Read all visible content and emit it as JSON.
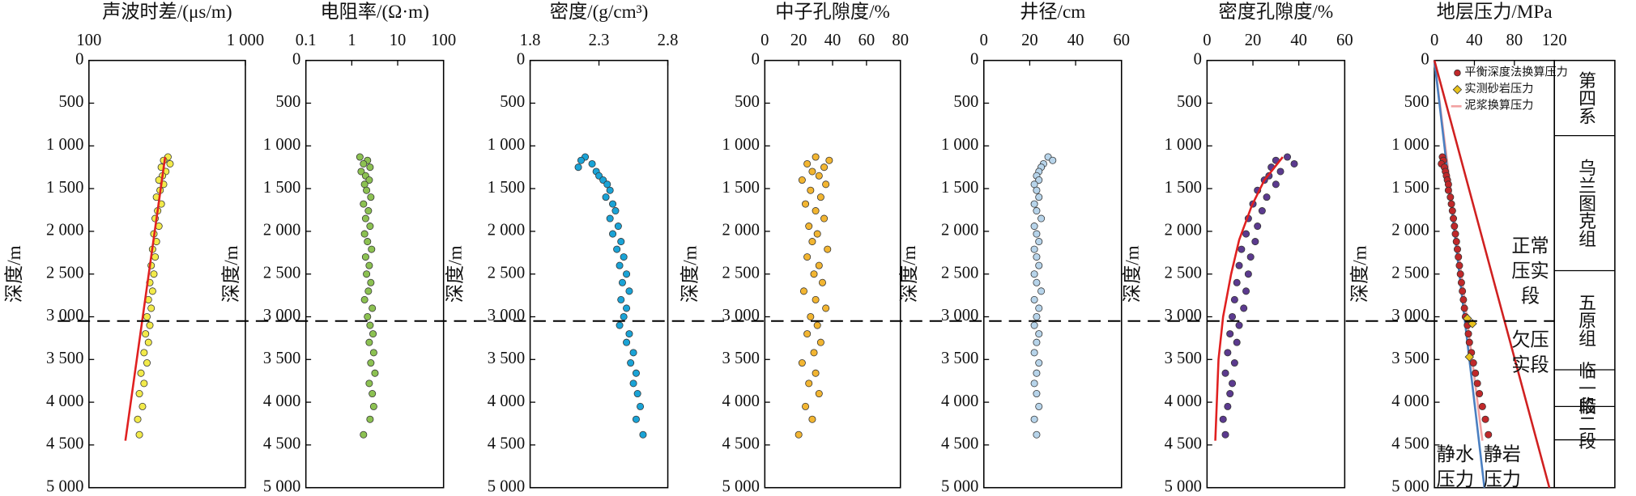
{
  "chart_data": [
    {
      "type": "scatter",
      "title": "声波时差/(μs/m)",
      "ylabel": "深度/m",
      "xscale": "log",
      "xlim": [
        100,
        1000
      ],
      "xticks": [
        100,
        {
          "value": 1000,
          "label": "1 000"
        }
      ],
      "ylim": [
        0,
        5000
      ],
      "yticks": [
        0,
        500,
        {
          "value": 1000,
          "label": "1 000"
        },
        {
          "value": 1500,
          "label": "1 500"
        },
        {
          "value": 2000,
          "label": "2 000"
        },
        {
          "value": 2500,
          "label": "2 500"
        },
        {
          "value": 3000,
          "label": "3 000"
        },
        {
          "value": 3500,
          "label": "3 500"
        },
        {
          "value": 4000,
          "label": "4 000"
        },
        {
          "value": 4500,
          "label": "4 500"
        },
        {
          "value": 5000,
          "label": "5 000"
        }
      ],
      "series": [
        {
          "kind": "scatter",
          "color": "#f2ea4a",
          "x": [
            320,
            300,
            330,
            290,
            310,
            295,
            280,
            300,
            285,
            270,
            290,
            275,
            265,
            280,
            260,
            270,
            255,
            265,
            250,
            260,
            245,
            255,
            240,
            250,
            235,
            245,
            230,
            240,
            225,
            235,
            215,
            225,
            210,
            220,
            205,
            210
          ],
          "y": [
            1130,
            1170,
            1210,
            1250,
            1300,
            1350,
            1400,
            1450,
            1520,
            1600,
            1680,
            1760,
            1850,
            1940,
            2030,
            2120,
            2210,
            2300,
            2400,
            2500,
            2600,
            2700,
            2800,
            2900,
            3000,
            3100,
            3200,
            3300,
            3420,
            3540,
            3660,
            3780,
            3900,
            4050,
            4200,
            4380
          ]
        },
        {
          "kind": "line",
          "color": "#e02020",
          "x": [
            307,
            171
          ],
          "y": [
            1130,
            4450
          ]
        }
      ]
    },
    {
      "type": "scatter",
      "title": "电阻率/(Ω·m)",
      "ylabel": "深度/m",
      "xscale": "log",
      "xlim": [
        0.1,
        100
      ],
      "xticks": [
        0.1,
        1,
        10,
        100
      ],
      "ylim": [
        0,
        5000
      ],
      "yticks": [
        0,
        500,
        {
          "value": 1000,
          "label": "1 000"
        },
        {
          "value": 1500,
          "label": "1 500"
        },
        {
          "value": 2000,
          "label": "2 000"
        },
        {
          "value": 2500,
          "label": "2 500"
        },
        {
          "value": 3000,
          "label": "3 000"
        },
        {
          "value": 3500,
          "label": "3 500"
        },
        {
          "value": 4000,
          "label": "4 000"
        },
        {
          "value": 4500,
          "label": "4 500"
        },
        {
          "value": 5000,
          "label": "5 000"
        }
      ],
      "series": [
        {
          "kind": "scatter",
          "color": "#8cc152",
          "x": [
            1.5,
            2.2,
            1.8,
            2.5,
            1.6,
            2,
            2.4,
            1.9,
            2.1,
            2.6,
            1.8,
            2.3,
            2,
            2.5,
            1.9,
            2.2,
            2.7,
            2,
            2.4,
            2.1,
            2.6,
            2.3,
            1.9,
            2.8,
            2.2,
            2.5,
            2.9,
            2.4,
            3,
            2.6,
            3.2,
            2.4,
            2.8,
            3,
            2.5,
            1.8
          ],
          "y": [
            1130,
            1170,
            1210,
            1250,
            1300,
            1350,
            1400,
            1450,
            1520,
            1600,
            1680,
            1760,
            1850,
            1940,
            2030,
            2120,
            2210,
            2300,
            2400,
            2500,
            2600,
            2700,
            2800,
            2900,
            3000,
            3100,
            3200,
            3300,
            3420,
            3540,
            3660,
            3780,
            3900,
            4050,
            4200,
            4380
          ]
        }
      ]
    },
    {
      "type": "scatter",
      "title": "密度/(g/cm³)",
      "ylabel": "深度/m",
      "xlim": [
        1.8,
        2.8
      ],
      "xticks": [
        1.8,
        2.3,
        2.8
      ],
      "ylim": [
        0,
        5000
      ],
      "yticks": [
        0,
        500,
        {
          "value": 1000,
          "label": "1 000"
        },
        {
          "value": 1500,
          "label": "1 500"
        },
        {
          "value": 2000,
          "label": "2 000"
        },
        {
          "value": 2500,
          "label": "2 500"
        },
        {
          "value": 3000,
          "label": "3 000"
        },
        {
          "value": 3500,
          "label": "3 500"
        },
        {
          "value": 4000,
          "label": "4 000"
        },
        {
          "value": 4500,
          "label": "4 500"
        },
        {
          "value": 5000,
          "label": "5 000"
        }
      ],
      "series": [
        {
          "kind": "scatter",
          "color": "#1aa3d6",
          "x": [
            2.2,
            2.17,
            2.25,
            2.15,
            2.28,
            2.3,
            2.33,
            2.36,
            2.38,
            2.35,
            2.4,
            2.42,
            2.38,
            2.44,
            2.4,
            2.46,
            2.43,
            2.48,
            2.45,
            2.5,
            2.47,
            2.52,
            2.46,
            2.5,
            2.48,
            2.45,
            2.52,
            2.5,
            2.55,
            2.53,
            2.57,
            2.55,
            2.58,
            2.6,
            2.57,
            2.62
          ],
          "y": [
            1130,
            1170,
            1210,
            1250,
            1300,
            1350,
            1400,
            1450,
            1520,
            1600,
            1680,
            1760,
            1850,
            1940,
            2030,
            2120,
            2210,
            2300,
            2400,
            2500,
            2600,
            2700,
            2800,
            2900,
            3000,
            3100,
            3200,
            3300,
            3420,
            3540,
            3660,
            3780,
            3900,
            4050,
            4200,
            4380
          ]
        }
      ]
    },
    {
      "type": "scatter",
      "title": "中子孔隙度/%",
      "ylabel": "深度/m",
      "xlim": [
        0,
        80
      ],
      "xticks": [
        0,
        20,
        40,
        60,
        80
      ],
      "ylim": [
        0,
        5000
      ],
      "yticks": [
        0,
        500,
        {
          "value": 1000,
          "label": "1 000"
        },
        {
          "value": 1500,
          "label": "1 500"
        },
        {
          "value": 2000,
          "label": "2 000"
        },
        {
          "value": 2500,
          "label": "2 500"
        },
        {
          "value": 3000,
          "label": "3 000"
        },
        {
          "value": 3500,
          "label": "3 500"
        },
        {
          "value": 4000,
          "label": "4 000"
        },
        {
          "value": 4500,
          "label": "4 500"
        },
        {
          "value": 5000,
          "label": "5 000"
        }
      ],
      "series": [
        {
          "kind": "scatter",
          "color": "#f2b531",
          "x": [
            30,
            38,
            25,
            35,
            28,
            32,
            22,
            36,
            27,
            33,
            24,
            30,
            35,
            26,
            31,
            28,
            37,
            25,
            32,
            29,
            34,
            23,
            30,
            36,
            27,
            31,
            25,
            33,
            29,
            22,
            30,
            26,
            32,
            24,
            28,
            20
          ],
          "y": [
            1130,
            1170,
            1210,
            1250,
            1300,
            1350,
            1400,
            1450,
            1520,
            1600,
            1680,
            1760,
            1850,
            1940,
            2030,
            2120,
            2210,
            2300,
            2400,
            2500,
            2600,
            2700,
            2800,
            2900,
            3000,
            3100,
            3200,
            3300,
            3420,
            3540,
            3660,
            3780,
            3900,
            4050,
            4200,
            4380
          ]
        }
      ]
    },
    {
      "type": "scatter",
      "title": "井径/cm",
      "ylabel": "深度/m",
      "xlim": [
        0,
        60
      ],
      "xticks": [
        0,
        20,
        40,
        60
      ],
      "ylim": [
        0,
        5000
      ],
      "yticks": [
        0,
        500,
        {
          "value": 1000,
          "label": "1 000"
        },
        {
          "value": 1500,
          "label": "1 500"
        },
        {
          "value": 2000,
          "label": "2 000"
        },
        {
          "value": 2500,
          "label": "2 500"
        },
        {
          "value": 3000,
          "label": "3 000"
        },
        {
          "value": 3500,
          "label": "3 500"
        },
        {
          "value": 4000,
          "label": "4 000"
        },
        {
          "value": 4500,
          "label": "4 500"
        },
        {
          "value": 5000,
          "label": "5 000"
        }
      ],
      "series": [
        {
          "kind": "scatter",
          "color": "#b7d4ea",
          "x": [
            28,
            30,
            26,
            25,
            24,
            23,
            24,
            22,
            23,
            24,
            22,
            23,
            25,
            22,
            23,
            24,
            22,
            23,
            24,
            22,
            23,
            25,
            22,
            24,
            23,
            22,
            24,
            23,
            22,
            24,
            23,
            22,
            23,
            24,
            22,
            23
          ],
          "y": [
            1130,
            1170,
            1210,
            1250,
            1300,
            1350,
            1400,
            1450,
            1520,
            1600,
            1680,
            1760,
            1850,
            1940,
            2030,
            2120,
            2210,
            2300,
            2400,
            2500,
            2600,
            2700,
            2800,
            2900,
            3000,
            3100,
            3200,
            3300,
            3420,
            3540,
            3660,
            3780,
            3900,
            4050,
            4200,
            4380
          ]
        }
      ]
    },
    {
      "type": "scatter",
      "title": "密度孔隙度/%",
      "ylabel": "深度/m",
      "xlim": [
        0,
        60
      ],
      "xticks": [
        0,
        20,
        40,
        60
      ],
      "ylim": [
        0,
        5000
      ],
      "yticks": [
        0,
        500,
        {
          "value": 1000,
          "label": "1 000"
        },
        {
          "value": 1500,
          "label": "1 500"
        },
        {
          "value": 2000,
          "label": "2 000"
        },
        {
          "value": 2500,
          "label": "2 500"
        },
        {
          "value": 3000,
          "label": "3 000"
        },
        {
          "value": 3500,
          "label": "3 500"
        },
        {
          "value": 4000,
          "label": "4 000"
        },
        {
          "value": 4500,
          "label": "4 500"
        },
        {
          "value": 5000,
          "label": "5 000"
        }
      ],
      "series": [
        {
          "kind": "scatter",
          "color": "#5b3a8e",
          "x": [
            35,
            30,
            38,
            28,
            32,
            27,
            25,
            30,
            22,
            26,
            20,
            24,
            18,
            22,
            17,
            21,
            15,
            19,
            14,
            18,
            13,
            17,
            12,
            16,
            11,
            14,
            10,
            13,
            9,
            12,
            8,
            11,
            10,
            9,
            7,
            8
          ],
          "y": [
            1130,
            1170,
            1210,
            1250,
            1300,
            1350,
            1400,
            1450,
            1520,
            1600,
            1680,
            1760,
            1850,
            1940,
            2030,
            2120,
            2210,
            2300,
            2400,
            2500,
            2600,
            2700,
            2800,
            2900,
            3000,
            3100,
            3200,
            3300,
            3420,
            3540,
            3660,
            3780,
            3900,
            4050,
            4200,
            4380
          ]
        },
        {
          "kind": "line",
          "color": "#e02020",
          "x": [
            33,
            25,
            19.5,
            14,
            10.5,
            7,
            5,
            3.6
          ],
          "y": [
            1130,
            1400,
            1700,
            2100,
            2500,
            3000,
            3500,
            4450
          ]
        }
      ]
    },
    {
      "type": "scatter",
      "title": "地层压力/MPa",
      "ylabel": "深度/m",
      "xlim": [
        0,
        120
      ],
      "xticks": [
        0,
        40,
        80,
        120
      ],
      "ylim": [
        0,
        5000
      ],
      "yticks": [
        0,
        500,
        {
          "value": 1000,
          "label": "1 000"
        },
        {
          "value": 1500,
          "label": "1 500"
        },
        {
          "value": 2000,
          "label": "2 000"
        },
        {
          "value": 2500,
          "label": "2 500"
        },
        {
          "value": 3000,
          "label": "3 000"
        },
        {
          "value": 3500,
          "label": "3 500"
        },
        {
          "value": 4000,
          "label": "4 000"
        },
        {
          "value": 4500,
          "label": "4 500"
        },
        {
          "value": 5000,
          "label": "5 000"
        }
      ],
      "series": [
        {
          "kind": "line",
          "color": "#f2a0a0",
          "name": "泥浆换算压力",
          "x": [
            0,
            48
          ],
          "y": [
            0,
            4450
          ]
        },
        {
          "kind": "line",
          "color": "#4a7fc1",
          "x": [
            0,
            50
          ],
          "y": [
            0,
            5000
          ]
        },
        {
          "kind": "line",
          "color": "#d02020",
          "x": [
            0,
            115
          ],
          "y": [
            0,
            5000
          ]
        },
        {
          "kind": "scatter",
          "color": "#c0282a",
          "name": "平衡深度法换算压力",
          "x": [
            8,
            9,
            7,
            10,
            11,
            12,
            13,
            14,
            14,
            16,
            17,
            18,
            19,
            20,
            21,
            22,
            23,
            24,
            25,
            26,
            27,
            28,
            29,
            30,
            31,
            33,
            34,
            35,
            37,
            39,
            41,
            43,
            45,
            48,
            51,
            54
          ],
          "y": [
            1130,
            1170,
            1210,
            1250,
            1300,
            1350,
            1400,
            1450,
            1520,
            1600,
            1680,
            1760,
            1850,
            1940,
            2030,
            2120,
            2210,
            2300,
            2400,
            2500,
            2600,
            2700,
            2800,
            2900,
            3000,
            3100,
            3200,
            3300,
            3420,
            3540,
            3660,
            3780,
            3900,
            4050,
            4200,
            4380
          ]
        },
        {
          "kind": "scatter",
          "marker": "diamond",
          "color": "#e8c21c",
          "name": "实测砂岩压力",
          "x": [
            33,
            38,
            35
          ],
          "y": [
            3020,
            3080,
            3470
          ]
        }
      ],
      "annotations": [
        "正常压实段",
        "欠压实段",
        "静水压力",
        "静岩压力"
      ],
      "strata": [
        {
          "name": "第四系",
          "top": 0,
          "bottom": 880
        },
        {
          "name": "乌兰图克组",
          "top": 880,
          "bottom": 2460
        },
        {
          "name": "五原组",
          "top": 2460,
          "bottom": 3620
        },
        {
          "name": "临一段",
          "top": 3620,
          "bottom": 4050
        },
        {
          "name": "临二段",
          "top": 4050,
          "bottom": 4440
        }
      ]
    }
  ],
  "divider_depth": 3050
}
